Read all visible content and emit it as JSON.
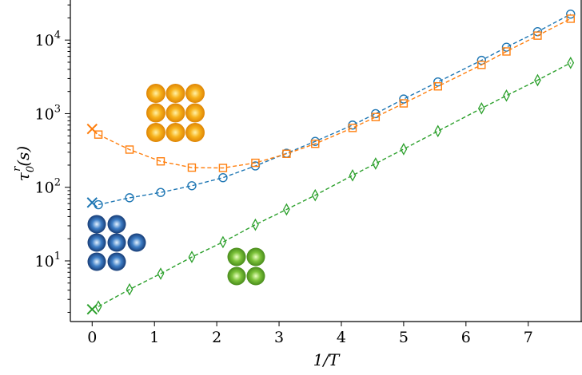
{
  "chart_data": {
    "type": "line",
    "xlabel": "1/T",
    "ylabel": "τ0^r(s)",
    "ylabel_parts": {
      "base": "τ",
      "sub": "0",
      "sup": "r",
      "tail": "(s)"
    },
    "xlim": [
      -0.35,
      7.85
    ],
    "ylim": [
      1.5,
      35000
    ],
    "yscale": "log",
    "x_ticks": [
      0,
      1,
      2,
      3,
      4,
      5,
      6,
      7
    ],
    "x_tick_labels": [
      "0",
      "1",
      "2",
      "3",
      "4",
      "5",
      "6",
      "7"
    ],
    "y_ticks": [
      10,
      100,
      1000,
      10000
    ],
    "y_tick_labels": [
      {
        "base": "10",
        "exp": "1"
      },
      {
        "base": "10",
        "exp": "2"
      },
      {
        "base": "10",
        "exp": "3"
      },
      {
        "base": "10",
        "exp": "4"
      }
    ],
    "series": [
      {
        "color": "#1f77b4",
        "marker": "circle",
        "x": [
          0.1,
          0.6,
          1.1,
          1.6,
          2.1,
          2.62,
          3.12,
          3.58,
          4.18,
          4.55,
          5.0,
          5.55,
          6.25,
          6.65,
          7.15,
          7.68
        ],
        "y": [
          58,
          72,
          85,
          105,
          135,
          195,
          290,
          420,
          700,
          1000,
          1580,
          2700,
          5300,
          8000,
          13000,
          22500
        ],
        "extrapolated": {
          "x": 0.0,
          "y": 62,
          "marker": "x"
        }
      },
      {
        "color": "#ff7f0e",
        "marker": "square",
        "x": [
          0.1,
          0.6,
          1.1,
          1.6,
          2.1,
          2.62,
          3.12,
          3.58,
          4.18,
          4.55,
          5.0,
          5.55,
          6.25,
          6.65,
          7.15,
          7.68
        ],
        "y": [
          520,
          325,
          225,
          185,
          183,
          215,
          285,
          390,
          640,
          900,
          1380,
          2350,
          4600,
          7000,
          11500,
          19500
        ],
        "extrapolated": {
          "x": 0.0,
          "y": 620,
          "marker": "x"
        }
      },
      {
        "color": "#2ca02c",
        "marker": "thin_diamond",
        "x": [
          0.1,
          0.6,
          1.1,
          1.6,
          2.1,
          2.62,
          3.12,
          3.58,
          4.18,
          4.55,
          5.0,
          5.55,
          6.25,
          6.65,
          7.15,
          7.68
        ],
        "y": [
          2.4,
          4.1,
          6.7,
          11.3,
          18.0,
          31,
          50,
          78,
          145,
          210,
          330,
          580,
          1180,
          1760,
          2850,
          4900
        ],
        "extrapolated": {
          "x": 0.0,
          "y": 2.2,
          "marker": "x"
        }
      }
    ],
    "insets": [
      {
        "name": "orange-sphere-cluster",
        "color": "#f59a0c",
        "highlight": "#ffe27a",
        "layout": "3x3"
      },
      {
        "name": "blue-sphere-cluster",
        "color": "#1f4f9a",
        "highlight": "#cfe6ff",
        "layout": "2-3-2"
      },
      {
        "name": "green-sphere-cluster",
        "color": "#5aa72a",
        "highlight": "#d9f5a0",
        "layout": "2x2"
      }
    ],
    "grid": false,
    "legend": "none"
  }
}
